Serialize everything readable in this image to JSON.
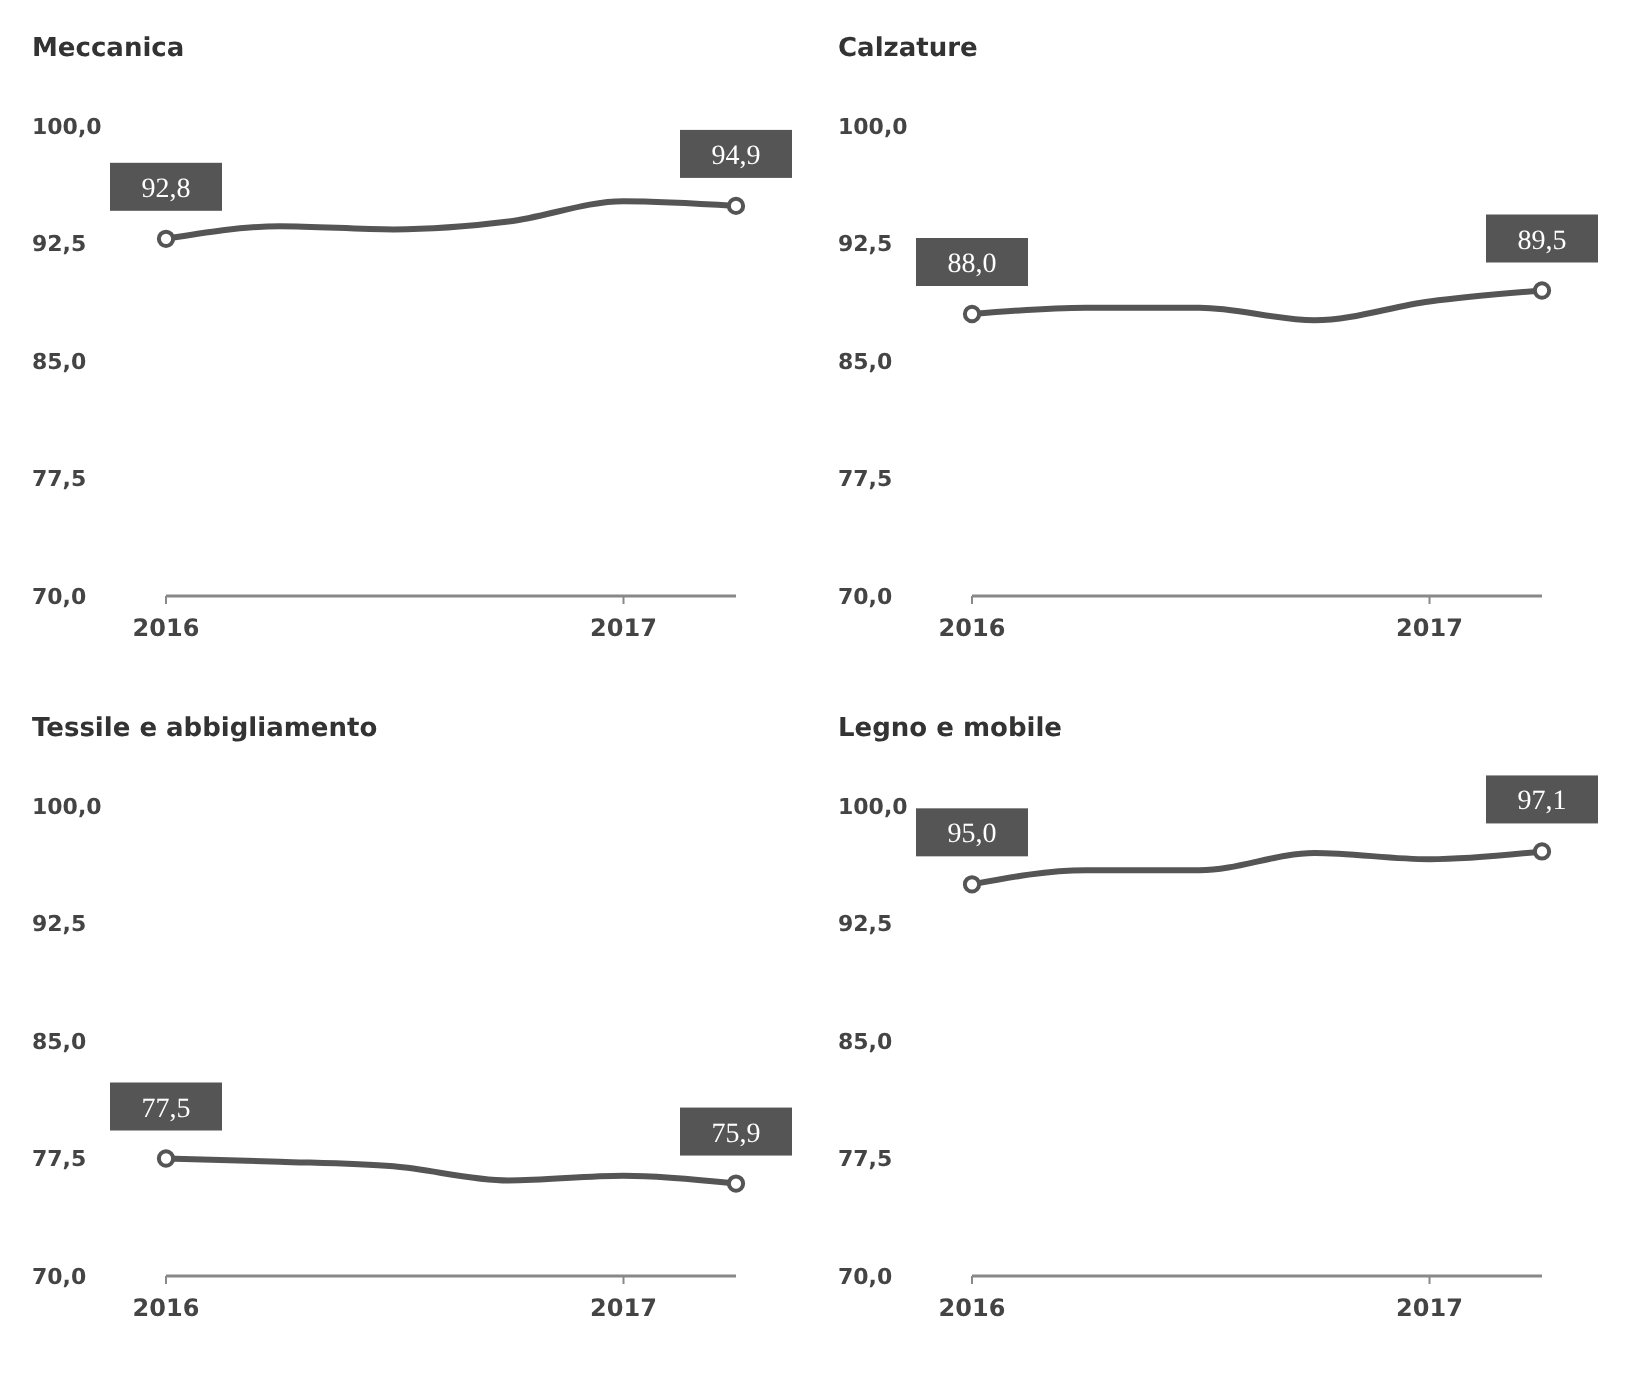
{
  "chart_data": [
    {
      "type": "line",
      "title": "Meccanica",
      "x": [
        "2016-01",
        "2016-04",
        "2016-07",
        "2016-10",
        "2017-01",
        "2017-04"
      ],
      "series": [
        {
          "color": "#555555",
          "marker": "none",
          "values": [
            92.8,
            93.6,
            93.4,
            93.9,
            95.2,
            94.9
          ]
        },
        {
          "type": "scatter",
          "color": "#555555",
          "x": [
            "2016-01",
            "2017-04"
          ],
          "values": [
            92.8,
            94.9
          ],
          "value_labels": [
            "92,8",
            "94,9"
          ]
        }
      ],
      "xlim": [
        "2016-01",
        "2017-04"
      ],
      "xticks": [
        "2016",
        "2017"
      ],
      "ylim": [
        70,
        100
      ],
      "yticks": [
        {
          "value": 70,
          "label": "70,0"
        },
        {
          "value": 77.5,
          "label": "77,5"
        },
        {
          "value": 85,
          "label": "85,0"
        },
        {
          "value": 92.5,
          "label": "92,5"
        },
        {
          "value": 100,
          "label": "100,0"
        }
      ],
      "marker": "circle",
      "grid": false
    },
    {
      "type": "line",
      "title": "Calzature",
      "x": [
        "2016-01",
        "2016-04",
        "2016-07",
        "2016-10",
        "2017-01",
        "2017-04"
      ],
      "series": [
        {
          "color": "#555555",
          "marker": "none",
          "values": [
            88.0,
            88.4,
            88.4,
            87.6,
            88.8,
            89.5
          ]
        },
        {
          "type": "scatter",
          "color": "#555555",
          "x": [
            "2016-01",
            "2017-04"
          ],
          "values": [
            88.0,
            89.5
          ],
          "value_labels": [
            "88,0",
            "89,5"
          ]
        }
      ],
      "xlim": [
        "2016-01",
        "2017-04"
      ],
      "xticks": [
        "2016",
        "2017"
      ],
      "ylim": [
        70,
        100
      ],
      "yticks": [
        {
          "value": 70,
          "label": "70,0"
        },
        {
          "value": 77.5,
          "label": "77,5"
        },
        {
          "value": 85,
          "label": "85,0"
        },
        {
          "value": 92.5,
          "label": "92,5"
        },
        {
          "value": 100,
          "label": "100,0"
        }
      ],
      "marker": "circle",
      "grid": false
    },
    {
      "type": "line",
      "title": "Tessile e abbigliamento",
      "x": [
        "2016-01",
        "2016-04",
        "2016-07",
        "2016-10",
        "2017-01",
        "2017-04"
      ],
      "series": [
        {
          "color": "#555555",
          "marker": "none",
          "values": [
            77.5,
            77.3,
            77.0,
            76.1,
            76.4,
            75.9
          ]
        },
        {
          "type": "scatter",
          "color": "#555555",
          "x": [
            "2016-01",
            "2017-04"
          ],
          "values": [
            77.5,
            75.9
          ],
          "value_labels": [
            "77,5",
            "75,9"
          ]
        }
      ],
      "xlim": [
        "2016-01",
        "2017-04"
      ],
      "xticks": [
        "2016",
        "2017"
      ],
      "ylim": [
        70,
        100
      ],
      "yticks": [
        {
          "value": 70,
          "label": "70,0"
        },
        {
          "value": 77.5,
          "label": "77,5"
        },
        {
          "value": 85,
          "label": "85,0"
        },
        {
          "value": 92.5,
          "label": "92,5"
        },
        {
          "value": 100,
          "label": "100,0"
        }
      ],
      "marker": "circle",
      "grid": false
    },
    {
      "type": "line",
      "title": "Legno e mobile",
      "x": [
        "2016-01",
        "2016-04",
        "2016-07",
        "2016-10",
        "2017-01",
        "2017-04"
      ],
      "series": [
        {
          "color": "#555555",
          "marker": "none",
          "values": [
            95.0,
            95.9,
            95.9,
            97.0,
            96.6,
            97.1
          ]
        },
        {
          "type": "scatter",
          "color": "#555555",
          "x": [
            "2016-01",
            "2017-04"
          ],
          "values": [
            95.0,
            97.1
          ],
          "value_labels": [
            "95,0",
            "97,1"
          ]
        }
      ],
      "xlim": [
        "2016-01",
        "2017-04"
      ],
      "xticks": [
        "2016",
        "2017"
      ],
      "ylim": [
        70,
        100
      ],
      "yticks": [
        {
          "value": 70,
          "label": "70,0"
        },
        {
          "value": 77.5,
          "label": "77,5"
        },
        {
          "value": 85,
          "label": "85,0"
        },
        {
          "value": 92.5,
          "label": "92,5"
        },
        {
          "value": 100,
          "label": "100,0"
        }
      ],
      "marker": "circle",
      "grid": false
    }
  ]
}
